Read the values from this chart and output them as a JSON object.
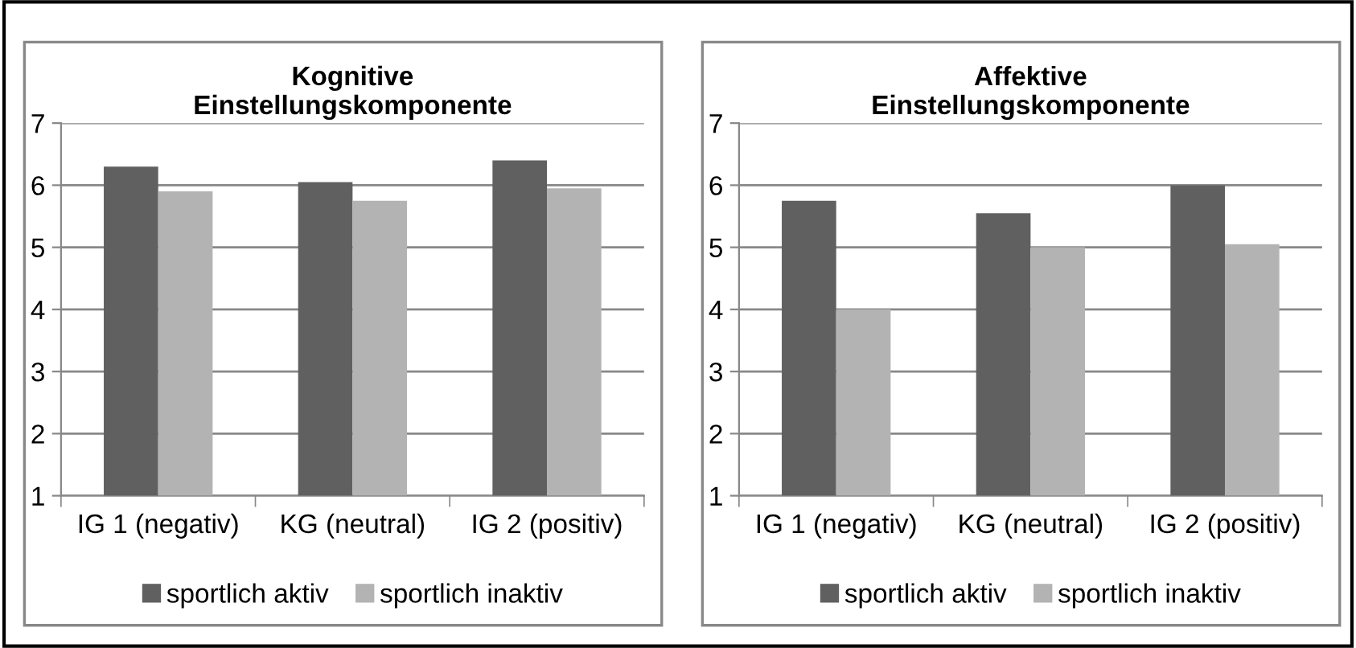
{
  "chart_data": [
    {
      "type": "bar",
      "title": "Kognitive\nEinstellungskomponente",
      "categories": [
        "IG 1 (negativ)",
        "KG (neutral)",
        "IG 2 (positiv)"
      ],
      "series": [
        {
          "name": "sportlich aktiv",
          "color": "#606060",
          "values": [
            6.3,
            6.05,
            6.4
          ]
        },
        {
          "name": "sportlich inaktiv",
          "color": "#b3b3b3",
          "values": [
            5.9,
            5.75,
            5.95
          ]
        }
      ],
      "ylim": [
        1,
        7
      ],
      "yticks": [
        1,
        2,
        3,
        4,
        5,
        6,
        7
      ],
      "grid": "y",
      "legend": "bottom"
    },
    {
      "type": "bar",
      "title": "Affektive\nEinstellungskomponente",
      "categories": [
        "IG 1 (negativ)",
        "KG (neutral)",
        "IG 2 (positiv)"
      ],
      "series": [
        {
          "name": "sportlich aktiv",
          "color": "#606060",
          "values": [
            5.75,
            5.55,
            6.0
          ]
        },
        {
          "name": "sportlich inaktiv",
          "color": "#b3b3b3",
          "values": [
            4.0,
            5.0,
            5.05
          ]
        }
      ],
      "ylim": [
        1,
        7
      ],
      "yticks": [
        1,
        2,
        3,
        4,
        5,
        6,
        7
      ],
      "grid": "y",
      "legend": "bottom"
    }
  ]
}
